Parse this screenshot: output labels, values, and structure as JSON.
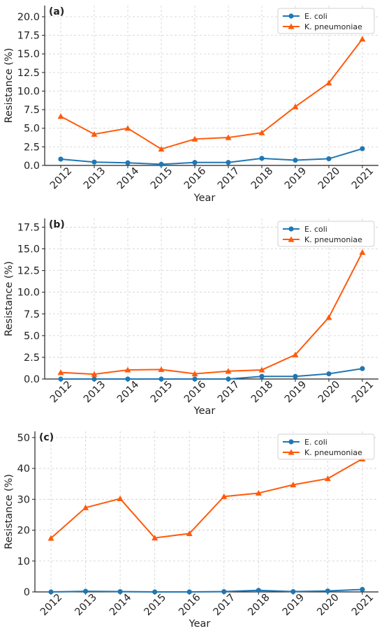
{
  "chart_data": [
    {
      "type": "line",
      "panel_label": "(a)",
      "xlabel": "Year",
      "ylabel": "Resistance (%)",
      "categories": [
        "2012",
        "2013",
        "2014",
        "2015",
        "2016",
        "2017",
        "2018",
        "2019",
        "2020",
        "2021"
      ],
      "ylim": [
        0,
        21.5
      ],
      "yticks": [
        "0.0",
        "2.5",
        "5.0",
        "7.5",
        "10.0",
        "12.5",
        "15.0",
        "17.5",
        "20.0"
      ],
      "ytick_values": [
        0,
        2.5,
        5,
        7.5,
        10,
        12.5,
        15,
        17.5,
        20
      ],
      "grid": true,
      "legend_position": "top-right",
      "series": [
        {
          "name": "E. coli",
          "color": "#1f77b4",
          "marker": "circle",
          "values": [
            0.85,
            0.45,
            0.35,
            0.15,
            0.4,
            0.4,
            0.95,
            0.7,
            0.9,
            2.25
          ]
        },
        {
          "name": "K. pneumoniae",
          "color": "#ff5a0a",
          "marker": "triangle",
          "values": [
            6.6,
            4.2,
            5.0,
            2.2,
            3.55,
            3.75,
            4.4,
            7.9,
            11.1,
            17.0
          ]
        }
      ]
    },
    {
      "type": "line",
      "panel_label": "(b)",
      "xlabel": "Year",
      "ylabel": "Resistance (%)",
      "categories": [
        "2012",
        "2013",
        "2014",
        "2015",
        "2016",
        "2017",
        "2018",
        "2019",
        "2020",
        "2021"
      ],
      "ylim": [
        0,
        18.5
      ],
      "yticks": [
        "0.0",
        "2.5",
        "5.0",
        "7.5",
        "10.0",
        "12.5",
        "15.0",
        "17.5"
      ],
      "ytick_values": [
        0,
        2.5,
        5,
        7.5,
        10,
        12.5,
        15,
        17.5
      ],
      "grid": true,
      "legend_position": "top-right",
      "series": [
        {
          "name": "E. coli",
          "color": "#1f77b4",
          "marker": "circle",
          "values": [
            0.0,
            0.0,
            0.0,
            0.0,
            0.0,
            0.0,
            0.3,
            0.3,
            0.6,
            1.2
          ]
        },
        {
          "name": "K. pneumoniae",
          "color": "#ff5a0a",
          "marker": "triangle",
          "values": [
            0.75,
            0.55,
            1.05,
            1.1,
            0.6,
            0.9,
            1.05,
            2.8,
            7.1,
            14.6
          ]
        }
      ]
    },
    {
      "type": "line",
      "panel_label": "(c)",
      "xlabel": "Year",
      "ylabel": "Resistance (%)",
      "categories": [
        "2012",
        "2013",
        "2014",
        "2015",
        "2016",
        "2017",
        "2018",
        "2019",
        "2020",
        "2021"
      ],
      "ylim": [
        0,
        52
      ],
      "yticks": [
        "0",
        "10",
        "20",
        "30",
        "40",
        "50"
      ],
      "ytick_values": [
        0,
        10,
        20,
        30,
        40,
        50
      ],
      "grid": true,
      "legend_position": "top-right",
      "series": [
        {
          "name": "E. coli",
          "color": "#1f77b4",
          "marker": "circle",
          "values": [
            0.0,
            0.2,
            0.1,
            0.0,
            0.0,
            0.1,
            0.5,
            0.1,
            0.3,
            0.8
          ]
        },
        {
          "name": "K. pneumoniae",
          "color": "#ff5a0a",
          "marker": "triangle",
          "values": [
            17.4,
            27.3,
            30.2,
            17.5,
            18.9,
            30.9,
            32.0,
            34.7,
            36.7,
            43.1
          ]
        }
      ]
    }
  ]
}
